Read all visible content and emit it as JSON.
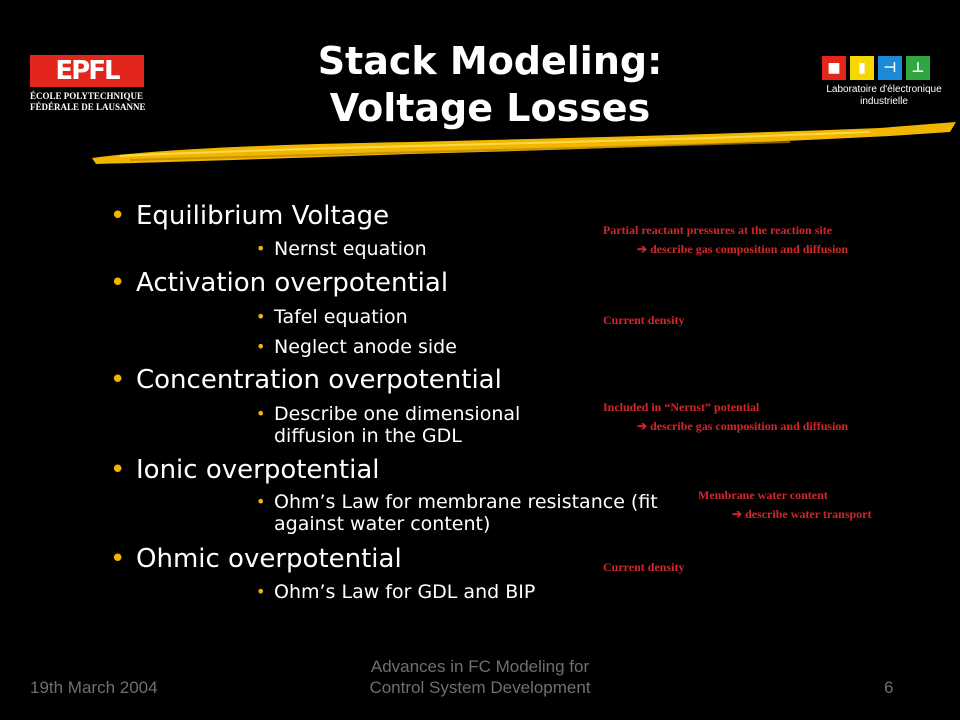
{
  "logos": {
    "epfl": {
      "mark": "EPFL",
      "line1": "ÉCOLE POLYTECHNIQUE",
      "line2": "FÉDÉRALE DE LAUSANNE"
    },
    "lei": {
      "caption_line1": "Laboratoire d'électronique",
      "caption_line2": "industrielle"
    }
  },
  "title": {
    "line1": "Stack Modeling:",
    "line2": "Voltage Losses"
  },
  "bullets": [
    {
      "label": "Equilibrium Voltage",
      "sub": [
        "Nernst equation"
      ]
    },
    {
      "label": "Activation overpotential",
      "sub": [
        "Tafel equation",
        "Neglect anode side"
      ]
    },
    {
      "label": "Concentration overpotential",
      "sub": [
        "Describe one dimensional diffusion in the GDL"
      ]
    },
    {
      "label": "Ionic overpotential",
      "sub": [
        "Ohm’s Law for membrane resistance (fit against water content)"
      ]
    },
    {
      "label": "Ohmic overpotential",
      "sub": [
        "Ohm’s Law for GDL and BIP"
      ]
    }
  ],
  "notes": {
    "n1_line1": "Partial reactant pressures at the reaction site",
    "n1_line2": "describe gas composition and diffusion",
    "n2": "Current density",
    "n3_line1": "Included in “Nernst” potential",
    "n3_line2": "describe gas composition and diffusion",
    "n4_line1": "Membrane water content",
    "n4_line2": "describe water transport",
    "n5": "Current density"
  },
  "footer": {
    "date": "19th March 2004",
    "center_line1": "Advances in FC Modeling for",
    "center_line2": "Control System Development",
    "page": "6"
  },
  "colors": {
    "background": "#000000",
    "accent": "#f2b600",
    "note": "#d3262b",
    "footer": "#6f6f6f"
  }
}
